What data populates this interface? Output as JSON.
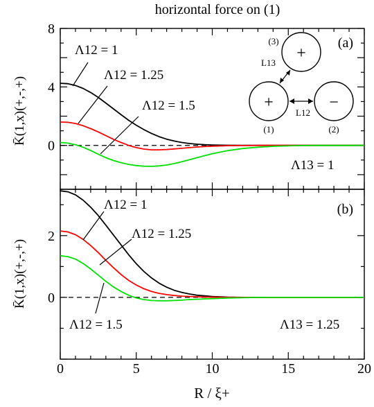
{
  "title": "horizontal force on (1)",
  "xlabel": "R / ξ+",
  "x_ticks": [
    "0",
    "5",
    "10",
    "15",
    "20"
  ],
  "colors": {
    "black": "#000000",
    "red": "#ff0000",
    "green": "#00e000"
  },
  "chart_data": [
    {
      "type": "line",
      "panel_label": "(a)",
      "ylabel": "K̄(1,x)(+,-,+)",
      "xlim": [
        0,
        20
      ],
      "ylim": [
        -3,
        8
      ],
      "y_ticks": [
        0,
        4,
        8
      ],
      "y_tick_labels": [
        "0",
        "4",
        "8"
      ],
      "zero_line": "dashed",
      "annotation": "Λ13 = 1",
      "inset": {
        "circles": [
          {
            "id": "(1)",
            "sign": "+"
          },
          {
            "id": "(2)",
            "sign": "−"
          },
          {
            "id": "(3)",
            "sign": "+"
          }
        ],
        "labels": [
          "L13",
          "L12"
        ]
      },
      "series": [
        {
          "name": "Λ12 = 1",
          "color": "#000000",
          "x": [
            0,
            0.5,
            1,
            1.5,
            2,
            2.5,
            3,
            3.5,
            4,
            4.5,
            5,
            5.5,
            6,
            6.5,
            7,
            7.5,
            8,
            8.5,
            9,
            9.5,
            10,
            11,
            12,
            13,
            14,
            15,
            16,
            18,
            20
          ],
          "y": [
            4.25,
            4.22,
            4.1,
            3.9,
            3.62,
            3.28,
            2.9,
            2.5,
            2.1,
            1.72,
            1.38,
            1.08,
            0.82,
            0.6,
            0.43,
            0.3,
            0.2,
            0.13,
            0.08,
            0.05,
            0.03,
            0.01,
            0,
            0,
            0,
            0,
            0,
            0,
            0
          ]
        },
        {
          "name": "Λ12 = 1.25",
          "color": "#ff0000",
          "x": [
            0,
            0.5,
            1,
            1.5,
            2,
            2.5,
            3,
            3.5,
            4,
            4.5,
            5,
            5.5,
            6,
            6.5,
            7,
            7.5,
            8,
            8.5,
            9,
            9.5,
            10,
            11,
            12,
            13,
            14,
            15,
            16,
            18,
            20
          ],
          "y": [
            1.6,
            1.58,
            1.5,
            1.35,
            1.15,
            0.92,
            0.67,
            0.42,
            0.2,
            0.0,
            -0.15,
            -0.25,
            -0.3,
            -0.3,
            -0.28,
            -0.24,
            -0.2,
            -0.15,
            -0.11,
            -0.08,
            -0.05,
            -0.02,
            -0.01,
            0,
            0,
            0,
            0,
            0,
            0
          ]
        },
        {
          "name": "Λ12 = 1.5",
          "color": "#00e000",
          "x": [
            0,
            0.5,
            1,
            1.5,
            2,
            2.5,
            3,
            3.5,
            4,
            4.5,
            5,
            5.5,
            6,
            6.5,
            7,
            7.5,
            8,
            8.5,
            9,
            9.5,
            10,
            11,
            12,
            13,
            14,
            15,
            16,
            17,
            18,
            20
          ],
          "y": [
            0.2,
            0.16,
            0.05,
            -0.12,
            -0.35,
            -0.6,
            -0.84,
            -1.03,
            -1.18,
            -1.3,
            -1.38,
            -1.42,
            -1.43,
            -1.4,
            -1.34,
            -1.24,
            -1.12,
            -0.98,
            -0.84,
            -0.7,
            -0.57,
            -0.36,
            -0.21,
            -0.12,
            -0.06,
            -0.03,
            -0.01,
            0,
            0,
            0
          ]
        }
      ]
    },
    {
      "type": "line",
      "panel_label": "(b)",
      "ylabel": "K̄(1,x)(+,-,+)",
      "xlim": [
        0,
        20
      ],
      "ylim": [
        -2,
        3.5
      ],
      "y_ticks": [
        0,
        2
      ],
      "y_tick_labels": [
        "0",
        "2"
      ],
      "zero_line": "dashed",
      "annotation": "Λ13 = 1.25",
      "series": [
        {
          "name": "Λ12 = 1",
          "color": "#000000",
          "x": [
            0,
            0.5,
            1,
            1.5,
            2,
            2.5,
            3,
            3.5,
            4,
            4.5,
            5,
            5.5,
            6,
            6.5,
            7,
            7.5,
            8,
            8.5,
            9,
            9.5,
            10,
            11,
            12,
            13,
            14,
            15,
            16,
            18,
            20
          ],
          "y": [
            3.45,
            3.42,
            3.32,
            3.15,
            2.92,
            2.65,
            2.34,
            2.02,
            1.7,
            1.38,
            1.09,
            0.84,
            0.63,
            0.46,
            0.33,
            0.23,
            0.16,
            0.11,
            0.07,
            0.05,
            0.03,
            0.01,
            0,
            0,
            0,
            0,
            0,
            0,
            0
          ]
        },
        {
          "name": "Λ12 = 1.25",
          "color": "#ff0000",
          "x": [
            0,
            0.5,
            1,
            1.5,
            2,
            2.5,
            3,
            3.5,
            4,
            4.5,
            5,
            5.5,
            6,
            6.5,
            7,
            7.5,
            8,
            8.5,
            9,
            9.5,
            10,
            11,
            12,
            13,
            14,
            15,
            16,
            18,
            20
          ],
          "y": [
            2.15,
            2.12,
            2.03,
            1.88,
            1.68,
            1.45,
            1.2,
            0.96,
            0.74,
            0.55,
            0.4,
            0.28,
            0.19,
            0.13,
            0.09,
            0.06,
            0.04,
            0.03,
            0.02,
            0.01,
            0.01,
            0,
            0,
            0,
            0,
            0,
            0,
            0,
            0
          ]
        },
        {
          "name": "Λ12 = 1.5",
          "color": "#00e000",
          "x": [
            0,
            0.5,
            1,
            1.5,
            2,
            2.5,
            3,
            3.5,
            4,
            4.5,
            5,
            5.5,
            6,
            6.5,
            7,
            7.5,
            8,
            8.5,
            9,
            9.5,
            10,
            11,
            12,
            13,
            14,
            15,
            16,
            18,
            20
          ],
          "y": [
            1.35,
            1.32,
            1.24,
            1.1,
            0.92,
            0.72,
            0.52,
            0.34,
            0.19,
            0.07,
            -0.02,
            -0.07,
            -0.1,
            -0.11,
            -0.11,
            -0.1,
            -0.09,
            -0.07,
            -0.06,
            -0.05,
            -0.04,
            -0.02,
            -0.01,
            0,
            0,
            0,
            0,
            0,
            0
          ]
        }
      ]
    }
  ]
}
